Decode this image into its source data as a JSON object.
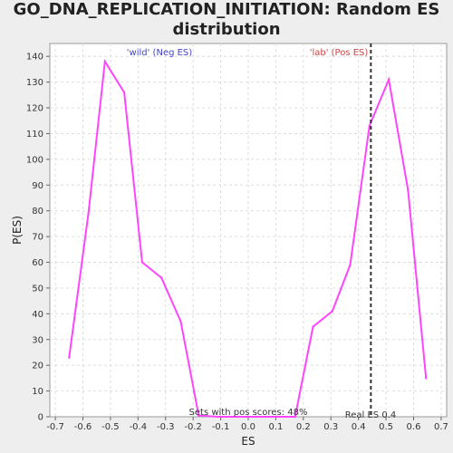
{
  "chart_data": {
    "type": "line",
    "title_line1": "GO_DNA_REPLICATION_INITIATION: Random ES",
    "title_line2": "distribution",
    "xlabel": "ES",
    "ylabel": "P(ES)",
    "xlim": [
      -0.72,
      0.72
    ],
    "ylim": [
      0,
      145
    ],
    "x_ticks": [
      -0.7,
      -0.6,
      -0.5,
      -0.4,
      -0.3,
      -0.2,
      -0.1,
      0.0,
      0.1,
      0.2,
      0.3,
      0.4,
      0.5,
      0.6,
      0.7
    ],
    "x_tick_labels": [
      "-0.7",
      "-0.6",
      "-0.5",
      "-0.4",
      "-0.3",
      "-0.2",
      "-0.1",
      "0.0",
      "0.1",
      "0.2",
      "0.3",
      "0.4",
      "0.5",
      "0.6",
      "0.7"
    ],
    "y_ticks": [
      0,
      10,
      20,
      30,
      40,
      50,
      60,
      70,
      80,
      90,
      100,
      110,
      120,
      130,
      140
    ],
    "y_tick_labels": [
      "0",
      "10",
      "20",
      "30",
      "40",
      "50",
      "60",
      "70",
      "80",
      "90",
      "100",
      "110",
      "120",
      "130",
      "140"
    ],
    "grid": true,
    "series": [
      {
        "color": "#ff44ff",
        "x": [
          -0.65,
          -0.58,
          -0.52,
          -0.45,
          -0.385,
          -0.315,
          -0.245,
          -0.18,
          -0.11,
          -0.04,
          0.03,
          0.1,
          0.17,
          0.235,
          0.305,
          0.37,
          0.44,
          0.51,
          0.58,
          0.645
        ],
        "y": [
          23,
          79,
          138,
          126,
          60,
          54,
          37,
          0.5,
          0,
          0,
          0,
          0,
          0,
          35,
          41,
          59,
          113,
          131,
          88,
          15
        ]
      }
    ],
    "real_es": 0.445,
    "annotations": {
      "neg_label": "'wild' (Neg ES)",
      "pos_label": "'lab' (Pos ES)",
      "pos_scores": "Sets with pos scores: 48%",
      "real_es_label": "Real ES 0.4"
    },
    "colors": {
      "neg_label": "#4444cc",
      "pos_label": "#cc4444",
      "line": "#ff44ff",
      "real_es_line": "#333333"
    }
  }
}
